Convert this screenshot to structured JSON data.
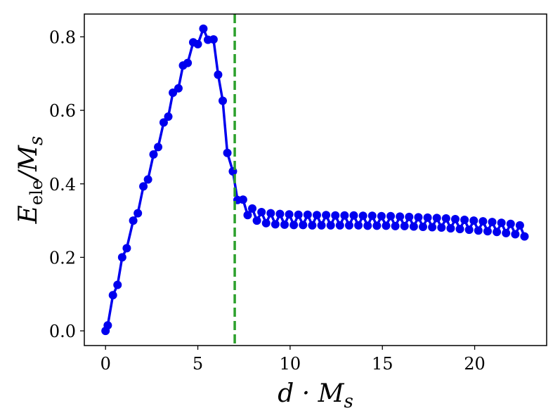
{
  "chart_data": {
    "type": "line",
    "title": "",
    "xlabel": "d · M_s",
    "ylabel": "E_ele / M_s",
    "xlim": [
      -1.15,
      23.9
    ],
    "ylim": [
      -0.04,
      0.862
    ],
    "xticks": [
      0,
      5,
      10,
      15,
      20
    ],
    "yticks": [
      0.0,
      0.2,
      0.4,
      0.6,
      0.8
    ],
    "xtick_labels": [
      "0",
      "5",
      "10",
      "15",
      "20"
    ],
    "ytick_labels": [
      "0.0",
      "0.2",
      "0.4",
      "0.6",
      "0.8"
    ],
    "grid": false,
    "legend": "none",
    "colors": {
      "series": "#0000ee",
      "vline": "#2ca02c"
    },
    "vline": {
      "x": 7.0,
      "style": "dashed"
    },
    "series": [
      {
        "x": [
          0.0,
          0.12,
          0.4,
          0.65,
          0.9,
          1.15,
          1.5,
          1.75,
          2.05,
          2.3,
          2.6,
          2.85,
          3.15,
          3.4,
          3.65,
          3.95,
          4.2,
          4.45,
          4.75,
          5.0,
          5.3,
          5.55,
          5.85,
          6.1,
          6.35,
          6.6,
          6.9,
          7.15,
          7.45,
          7.7,
          7.95,
          8.2,
          8.45,
          8.7,
          8.95,
          9.2,
          9.45,
          9.7,
          9.95,
          10.2,
          10.45,
          10.7,
          10.95,
          11.2,
          11.45,
          11.7,
          11.95,
          12.2,
          12.45,
          12.7,
          12.95,
          13.2,
          13.45,
          13.7,
          13.95,
          14.2,
          14.45,
          14.7,
          14.95,
          15.2,
          15.45,
          15.7,
          15.95,
          16.2,
          16.45,
          16.7,
          16.95,
          17.2,
          17.45,
          17.7,
          17.95,
          18.2,
          18.45,
          18.7,
          18.95,
          19.2,
          19.45,
          19.7,
          19.95,
          20.2,
          20.45,
          20.7,
          20.95,
          21.2,
          21.45,
          21.7,
          21.95,
          22.2,
          22.45,
          22.7
        ],
        "y": [
          0.0,
          0.015,
          0.097,
          0.125,
          0.2,
          0.225,
          0.3,
          0.32,
          0.393,
          0.412,
          0.48,
          0.5,
          0.567,
          0.583,
          0.648,
          0.66,
          0.722,
          0.729,
          0.785,
          0.78,
          0.822,
          0.792,
          0.793,
          0.697,
          0.626,
          0.484,
          0.434,
          0.356,
          0.357,
          0.315,
          0.333,
          0.3,
          0.323,
          0.293,
          0.32,
          0.29,
          0.318,
          0.289,
          0.317,
          0.288,
          0.316,
          0.288,
          0.316,
          0.287,
          0.315,
          0.287,
          0.315,
          0.287,
          0.314,
          0.287,
          0.314,
          0.287,
          0.314,
          0.287,
          0.313,
          0.286,
          0.313,
          0.286,
          0.312,
          0.286,
          0.312,
          0.285,
          0.311,
          0.285,
          0.31,
          0.284,
          0.309,
          0.283,
          0.308,
          0.282,
          0.307,
          0.281,
          0.306,
          0.279,
          0.304,
          0.277,
          0.302,
          0.275,
          0.3,
          0.273,
          0.298,
          0.271,
          0.296,
          0.269,
          0.294,
          0.266,
          0.291,
          0.263,
          0.287,
          0.257
        ]
      }
    ]
  }
}
